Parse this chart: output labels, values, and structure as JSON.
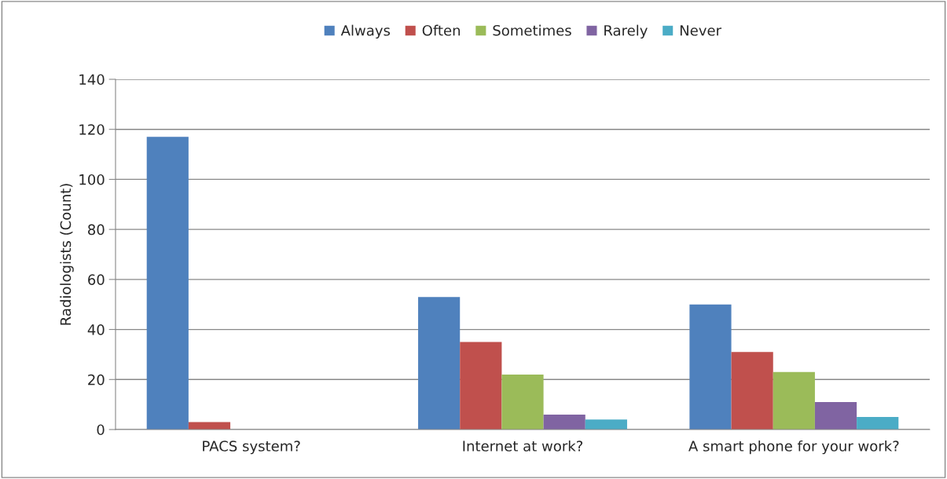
{
  "chart_data": {
    "type": "bar",
    "ylabel": "Radiologists (Count)",
    "categories": [
      "PACS system?",
      "Internet at work?",
      "A smart phone for your work?"
    ],
    "series": [
      {
        "name": "Always",
        "color": "#4f81bd",
        "values": [
          117,
          53,
          50
        ]
      },
      {
        "name": "Often",
        "color": "#c0504d",
        "values": [
          3,
          35,
          31
        ]
      },
      {
        "name": "Sometimes",
        "color": "#9bbb59",
        "values": [
          0,
          22,
          23
        ]
      },
      {
        "name": "Rarely",
        "color": "#8064a2",
        "values": [
          0,
          6,
          11
        ]
      },
      {
        "name": "Never",
        "color": "#4bacc6",
        "values": [
          0,
          4,
          5
        ]
      }
    ],
    "ylim": [
      0,
      140
    ],
    "yticks": [
      0,
      20,
      40,
      60,
      80,
      100,
      120,
      140
    ],
    "grid": "y",
    "legend": "top"
  }
}
